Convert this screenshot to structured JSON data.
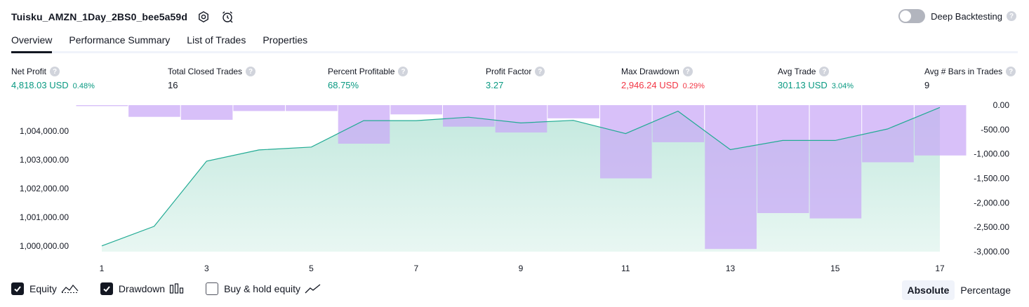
{
  "header": {
    "strategy_name": "Tuisku_AMZN_1Day_2BS0_bee5a59d",
    "deep_backtesting_label": "Deep Backtesting"
  },
  "tabs": [
    {
      "label": "Overview"
    },
    {
      "label": "Performance Summary"
    },
    {
      "label": "List of Trades"
    },
    {
      "label": "Properties"
    }
  ],
  "metrics": [
    {
      "label": "Net Profit",
      "value": "4,818.03 USD",
      "sub": "0.48%",
      "tone": "pos"
    },
    {
      "label": "Total Closed Trades",
      "value": "16",
      "sub": "",
      "tone": "plain"
    },
    {
      "label": "Percent Profitable",
      "value": "68.75%",
      "sub": "",
      "tone": "pos"
    },
    {
      "label": "Profit Factor",
      "value": "3.27",
      "sub": "",
      "tone": "pos"
    },
    {
      "label": "Max Drawdown",
      "value": "2,946.24 USD",
      "sub": "0.29%",
      "tone": "neg"
    },
    {
      "label": "Avg Trade",
      "value": "301.13 USD",
      "sub": "3.04%",
      "tone": "pos"
    },
    {
      "label": "Avg # Bars in Trades",
      "value": "9",
      "sub": "",
      "tone": "plain"
    }
  ],
  "legend": {
    "equity_label": "Equity",
    "equity_checked": true,
    "drawdown_label": "Drawdown",
    "drawdown_checked": true,
    "buyhold_label": "Buy & hold equity",
    "buyhold_checked": false
  },
  "mode": {
    "absolute_label": "Absolute",
    "percentage_label": "Percentage",
    "selected": "Absolute"
  },
  "colors": {
    "equity_line": "#22ab94",
    "equity_fill": "#c8ebe2",
    "drawdown_bar": "#c9a8f7",
    "overlap_bar": "#b3b1e3",
    "positive": "#089981",
    "negative": "#f23645"
  },
  "chart_data": {
    "type": "line",
    "x_ticks": [
      "1",
      "3",
      "5",
      "7",
      "9",
      "11",
      "13",
      "15",
      "17"
    ],
    "x_range": [
      1,
      17
    ],
    "left_axis": {
      "ticks": [
        "1,000,000.00",
        "1,001,000.00",
        "1,002,000.00",
        "1,003,000.00",
        "1,004,000.00"
      ],
      "ylim": [
        999800,
        1004900
      ]
    },
    "right_axis": {
      "ticks": [
        "0.00",
        "-500.00",
        "-1,000.00",
        "-1,500.00",
        "-2,000.00",
        "-2,500.00",
        "-3,000.00"
      ],
      "ylim": [
        -3000,
        0
      ]
    },
    "series": [
      {
        "name": "Equity",
        "axis": "left",
        "x": [
          1,
          2,
          3,
          4,
          5,
          6,
          7,
          8,
          9,
          10,
          11,
          12,
          13,
          14,
          15,
          16,
          17
        ],
        "values": [
          1000000,
          1000680,
          1002950,
          1003340,
          1003440,
          1004360,
          1004360,
          1004480,
          1004280,
          1004370,
          1003910,
          1004690,
          1003350,
          1003670,
          1003670,
          1004070,
          1004820
        ]
      },
      {
        "name": "Drawdown",
        "axis": "right",
        "x": [
          1,
          2,
          3,
          4,
          5,
          6,
          7,
          8,
          9,
          10,
          11,
          12,
          13,
          14,
          15,
          16,
          17
        ],
        "values": [
          -20,
          -240,
          -300,
          -120,
          -120,
          -790,
          -190,
          -440,
          -560,
          -270,
          -1500,
          -760,
          -2946,
          -2210,
          -2320,
          -1170,
          -1030
        ]
      }
    ],
    "grid": false
  }
}
